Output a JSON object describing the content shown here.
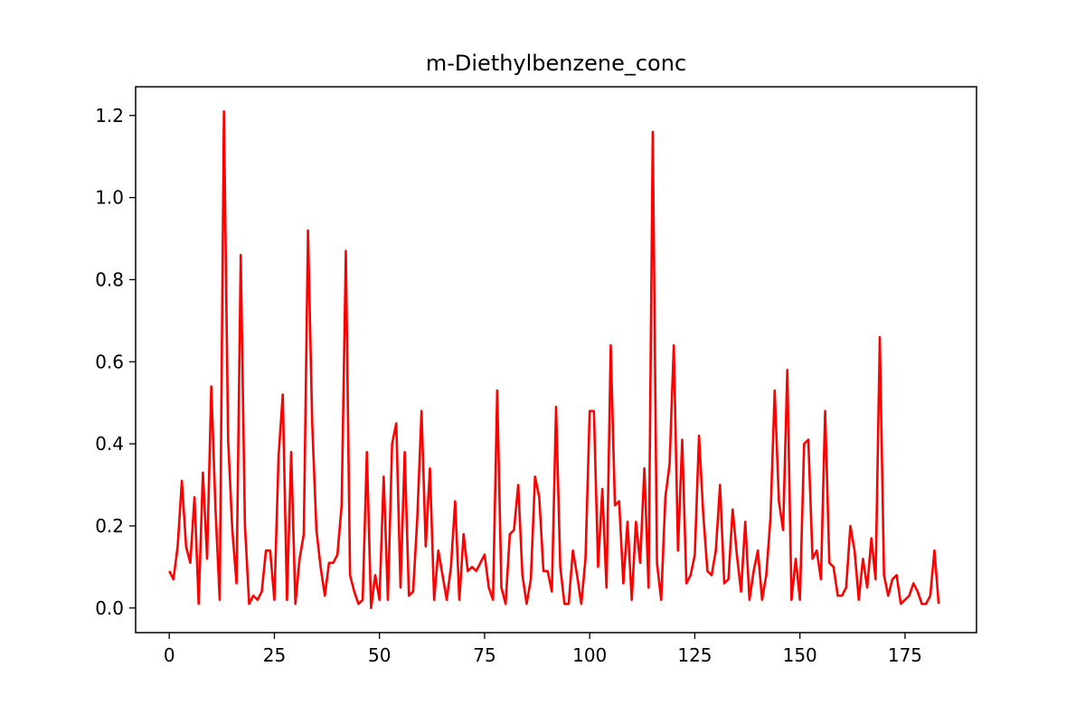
{
  "chart_data": {
    "type": "line",
    "title": "m-Diethylbenzene_conc",
    "xlabel": "",
    "ylabel": "",
    "xlim": [
      -8,
      192
    ],
    "ylim": [
      -0.06,
      1.27
    ],
    "grid": false,
    "x_ticks": [
      0,
      25,
      50,
      75,
      100,
      125,
      150,
      175
    ],
    "x_tick_labels": [
      "0",
      "25",
      "50",
      "75",
      "100",
      "125",
      "150",
      "175"
    ],
    "y_ticks": [
      0.0,
      0.2,
      0.4,
      0.6,
      0.8,
      1.0,
      1.2
    ],
    "y_tick_labels": [
      "0.0",
      "0.2",
      "0.4",
      "0.6",
      "0.8",
      "1.0",
      "1.2"
    ],
    "series": [
      {
        "name": "m-Diethylbenzene_conc",
        "color": "#ff0000",
        "values": [
          0.09,
          0.07,
          0.15,
          0.31,
          0.15,
          0.11,
          0.27,
          0.01,
          0.33,
          0.12,
          0.54,
          0.24,
          0.02,
          1.21,
          0.41,
          0.19,
          0.06,
          0.86,
          0.2,
          0.01,
          0.03,
          0.02,
          0.04,
          0.14,
          0.14,
          0.02,
          0.37,
          0.52,
          0.02,
          0.38,
          0.01,
          0.12,
          0.18,
          0.92,
          0.45,
          0.19,
          0.1,
          0.03,
          0.11,
          0.11,
          0.13,
          0.25,
          0.87,
          0.08,
          0.04,
          0.01,
          0.02,
          0.38,
          0.0,
          0.08,
          0.02,
          0.32,
          0.02,
          0.4,
          0.45,
          0.05,
          0.38,
          0.03,
          0.04,
          0.22,
          0.48,
          0.15,
          0.34,
          0.02,
          0.14,
          0.08,
          0.02,
          0.1,
          0.26,
          0.02,
          0.18,
          0.09,
          0.1,
          0.09,
          0.11,
          0.13,
          0.05,
          0.02,
          0.53,
          0.05,
          0.01,
          0.18,
          0.19,
          0.3,
          0.08,
          0.01,
          0.07,
          0.32,
          0.27,
          0.09,
          0.09,
          0.04,
          0.49,
          0.1,
          0.01,
          0.01,
          0.14,
          0.08,
          0.01,
          0.12,
          0.48,
          0.48,
          0.1,
          0.29,
          0.05,
          0.64,
          0.25,
          0.26,
          0.06,
          0.21,
          0.02,
          0.21,
          0.11,
          0.34,
          0.05,
          1.16,
          0.11,
          0.02,
          0.27,
          0.35,
          0.64,
          0.14,
          0.41,
          0.06,
          0.08,
          0.13,
          0.42,
          0.23,
          0.09,
          0.08,
          0.14,
          0.3,
          0.06,
          0.07,
          0.24,
          0.13,
          0.04,
          0.21,
          0.02,
          0.09,
          0.14,
          0.02,
          0.08,
          0.22,
          0.53,
          0.26,
          0.19,
          0.58,
          0.02,
          0.12,
          0.02,
          0.4,
          0.41,
          0.12,
          0.14,
          0.07,
          0.48,
          0.11,
          0.1,
          0.03,
          0.03,
          0.05,
          0.2,
          0.14,
          0.02,
          0.12,
          0.05,
          0.17,
          0.07,
          0.66,
          0.08,
          0.03,
          0.07,
          0.08,
          0.01,
          0.02,
          0.03,
          0.06,
          0.04,
          0.01,
          0.01,
          0.03,
          0.14,
          0.01
        ]
      }
    ]
  }
}
